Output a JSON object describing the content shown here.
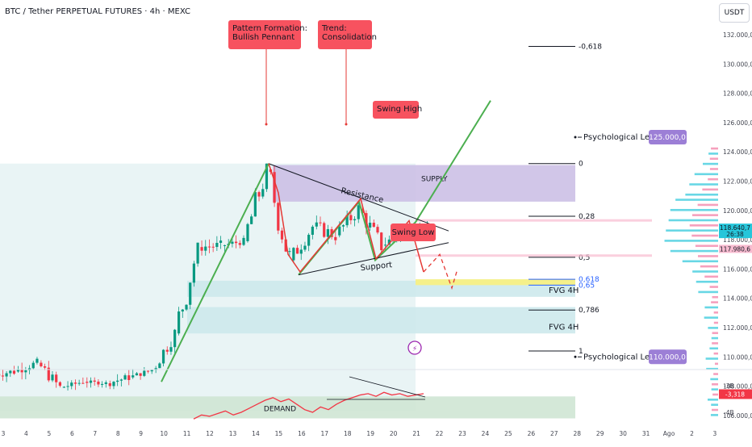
{
  "header": {
    "title": "BTC / Tether PERPETUAL FUTURES · 4h · MEXC",
    "currency_button": "USDT"
  },
  "colors": {
    "bull": "#089981",
    "bear": "#f23645",
    "green_line": "#4caf50",
    "red_path": "#e53935",
    "supply_zone": "#ccc0e6",
    "demand_zone": "#cfe5d4",
    "fvg_zone": "#cde9ec",
    "label_red": "#f7525f",
    "label_purple": "#9c7fd6",
    "golden_band": "#f5f08a"
  },
  "chart_data": {
    "type": "candlestick",
    "price_axis": {
      "ticks": [
        "132.000,0",
        "130.000,0",
        "128.000,0",
        "126.000,0",
        "124.000,0",
        "122.000,0",
        "120.000,0",
        "118.000,0",
        "116.000,0",
        "114.000,0",
        "112.000,0",
        "110.000,0",
        "108.000,0",
        "106.000,0"
      ],
      "current_price": "118.640,7",
      "countdown": "26:38",
      "secondary_price": "117.980,6"
    },
    "time_axis": {
      "ticks": [
        "3",
        "4",
        "5",
        "6",
        "7",
        "8",
        "9",
        "10",
        "11",
        "12",
        "13",
        "14",
        "15",
        "16",
        "17",
        "18",
        "19",
        "20",
        "21",
        "22",
        "23",
        "24",
        "25",
        "26",
        "27",
        "28",
        "29",
        "30",
        "31",
        "Ago",
        "2",
        "3"
      ]
    },
    "ohlc": [
      {
        "d": "3",
        "o": 108.8,
        "h": 109.6,
        "l": 108.0,
        "c": 109.0
      },
      {
        "d": "4",
        "o": 109.0,
        "h": 110.0,
        "l": 108.4,
        "c": 109.6
      },
      {
        "d": "5",
        "o": 109.6,
        "h": 109.9,
        "l": 107.5,
        "c": 107.9
      },
      {
        "d": "6",
        "o": 107.9,
        "h": 108.6,
        "l": 107.7,
        "c": 108.3
      },
      {
        "d": "7",
        "o": 108.3,
        "h": 108.6,
        "l": 107.9,
        "c": 108.2
      },
      {
        "d": "8",
        "o": 108.2,
        "h": 109.3,
        "l": 107.8,
        "c": 108.6
      },
      {
        "d": "9",
        "o": 108.6,
        "h": 109.3,
        "l": 108.3,
        "c": 109.1
      },
      {
        "d": "10",
        "o": 109.1,
        "h": 111.9,
        "l": 108.9,
        "c": 111.6
      },
      {
        "d": "11",
        "o": 111.6,
        "h": 117.8,
        "l": 111.0,
        "c": 117.5
      },
      {
        "d": "12",
        "o": 117.5,
        "h": 118.9,
        "l": 116.9,
        "c": 117.6
      },
      {
        "d": "13",
        "o": 117.6,
        "h": 118.3,
        "l": 117.0,
        "c": 117.9
      },
      {
        "d": "14",
        "o": 117.9,
        "h": 123.2,
        "l": 117.6,
        "c": 122.8
      },
      {
        "d": "15",
        "o": 122.8,
        "h": 123.1,
        "l": 115.7,
        "c": 116.6
      },
      {
        "d": "16",
        "o": 116.6,
        "h": 119.2,
        "l": 115.9,
        "c": 118.9
      },
      {
        "d": "17",
        "o": 118.9,
        "h": 120.1,
        "l": 117.3,
        "c": 118.3
      },
      {
        "d": "18",
        "o": 118.3,
        "h": 120.7,
        "l": 117.7,
        "c": 120.1
      },
      {
        "d": "19",
        "o": 120.1,
        "h": 120.4,
        "l": 116.9,
        "c": 117.6
      },
      {
        "d": "20",
        "o": 117.6,
        "h": 119.1,
        "l": 117.1,
        "c": 118.6
      },
      {
        "d": "21",
        "o": 118.6,
        "h": 119.3,
        "l": 118.1,
        "c": 118.64
      }
    ],
    "zones": [
      {
        "name": "SUPPLY",
        "from": 120.6,
        "to": 123.1
      },
      {
        "name": "FVG 4H",
        "from": 114.1,
        "to": 115.2
      },
      {
        "name": "FVG 4H",
        "from": 111.6,
        "to": 113.4
      },
      {
        "name": "DEMAND",
        "from": 105.8,
        "to": 107.3
      }
    ],
    "fibonacci": [
      {
        "label": "-0,618",
        "price": 131.2
      },
      {
        "label": "0",
        "price": 123.2
      },
      {
        "label": "0,28",
        "price": 119.6
      },
      {
        "label": "0,5",
        "price": 116.8
      },
      {
        "label": "0,618",
        "price": 115.3
      },
      {
        "label": "0,65",
        "price": 114.9
      },
      {
        "label": "0,786",
        "price": 113.2
      },
      {
        "label": "1",
        "price": 110.4
      }
    ],
    "annotations": {
      "pattern": "Pattern Formation:\nBullish Pennant",
      "trend": "Trend:\nConsolidation",
      "swing_high": "Swing High",
      "swing_low": "Swing Low",
      "resistance": "Resistance",
      "support": "Support",
      "psych_label": "Psychological Lev",
      "psych_high": "125.000,0",
      "psych_low": "110.000,0"
    },
    "oscillator": {
      "ticks": [
        "-3B",
        "-4B"
      ],
      "current": "-3,318",
      "values": [
        -4.25,
        -4.1,
        -4.15,
        -4.05,
        -3.95,
        -4.1,
        -4.0,
        -3.85,
        -3.7,
        -3.55,
        -3.45,
        -3.6,
        -3.5,
        -3.7,
        -3.9,
        -4.0,
        -3.8,
        -3.9,
        -3.7,
        -3.55,
        -3.45,
        -3.35,
        -3.3,
        -3.4,
        -3.25,
        -3.35,
        -3.3,
        -3.4,
        -3.35,
        -3.3
      ]
    }
  }
}
